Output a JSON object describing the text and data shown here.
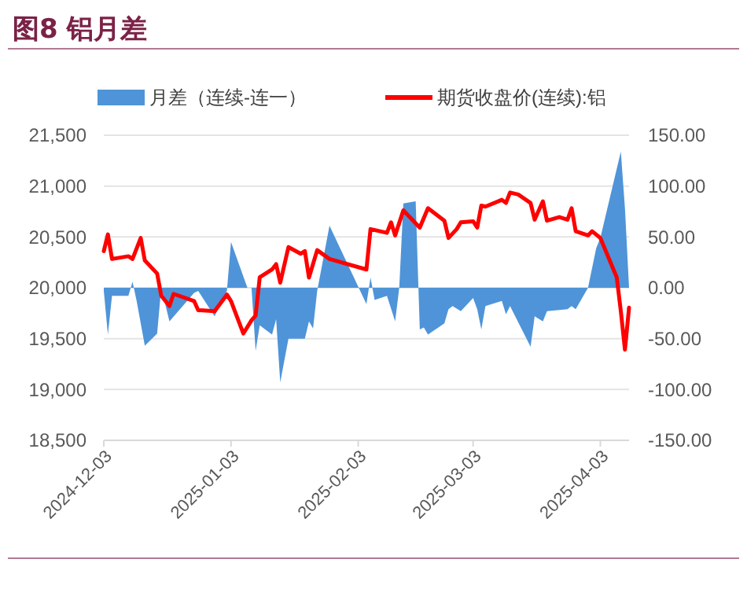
{
  "chart_data": {
    "type": "line",
    "title": "图8 铝月差",
    "legend": "top",
    "grid": "y",
    "xlim": [
      "2024-12-03",
      "2025-04-10"
    ],
    "xticks": [
      "2024-12-03",
      "2025-01-03",
      "2025-02-03",
      "2025-03-03",
      "2025-04-03"
    ],
    "ylim": [
      18500,
      21500
    ],
    "yticks": [
      {
        "value": 18500,
        "label": "18,500"
      },
      {
        "value": 19000,
        "label": "19,000"
      },
      {
        "value": 19500,
        "label": "19,500"
      },
      {
        "value": 20000,
        "label": "20,000"
      },
      {
        "value": 20500,
        "label": "20,500"
      },
      {
        "value": 21000,
        "label": "21,000"
      },
      {
        "value": 21500,
        "label": "21,500"
      }
    ],
    "y2lim": [
      -150,
      150
    ],
    "y2ticks": [
      {
        "value": -150,
        "label": "-150.00"
      },
      {
        "value": -100,
        "label": "-100.00"
      },
      {
        "value": -50,
        "label": "-50.00"
      },
      {
        "value": 0,
        "label": "0.00"
      },
      {
        "value": 50,
        "label": "50.00"
      },
      {
        "value": 100,
        "label": "100.00"
      },
      {
        "value": 150,
        "label": "150.00"
      }
    ],
    "series": [
      {
        "name": "月差（连续-连一）",
        "type": "area",
        "axis": "y2",
        "color": "#4f94d8",
        "x": [
          "2024-12-03",
          "2024-12-04",
          "2024-12-05",
          "2024-12-09",
          "2024-12-10",
          "2024-12-11",
          "2024-12-13",
          "2024-12-16",
          "2024-12-17",
          "2024-12-19",
          "2024-12-25",
          "2024-12-26",
          "2024-12-30",
          "2025-01-02",
          "2025-01-03",
          "2025-01-07",
          "2025-01-08",
          "2025-01-09",
          "2025-01-10",
          "2025-01-13",
          "2025-01-14",
          "2025-01-15",
          "2025-01-17",
          "2025-01-21",
          "2025-01-22",
          "2025-01-23",
          "2025-01-24",
          "2025-01-27",
          "2025-02-05",
          "2025-02-06",
          "2025-02-07",
          "2025-02-10",
          "2025-02-12",
          "2025-02-13",
          "2025-02-14",
          "2025-02-17",
          "2025-02-18",
          "2025-02-19",
          "2025-02-20",
          "2025-02-24",
          "2025-02-25",
          "2025-02-26",
          "2025-02-28",
          "2025-03-03",
          "2025-03-04",
          "2025-03-05",
          "2025-03-06",
          "2025-03-10",
          "2025-03-11",
          "2025-03-12",
          "2025-03-17",
          "2025-03-18",
          "2025-03-20",
          "2025-03-21",
          "2025-03-26",
          "2025-03-27",
          "2025-03-28",
          "2025-03-31",
          "2025-04-02",
          "2025-04-03",
          "2025-04-08",
          "2025-04-09",
          "2025-04-10"
        ],
        "values": [
          -3,
          -46,
          -8,
          -8,
          6,
          -13,
          -57,
          -45,
          0,
          -33,
          -5,
          -3,
          -28,
          -3,
          45,
          0,
          0,
          -62,
          -37,
          -46,
          -31,
          -93,
          -50,
          -50,
          -33,
          -40,
          -3,
          61,
          -16,
          10,
          -12,
          -8,
          -33,
          0,
          83,
          85,
          -41,
          -39,
          -46,
          -35,
          -21,
          -18,
          -23,
          -10,
          -21,
          -41,
          -18,
          -13,
          -26,
          -18,
          -58,
          -28,
          -33,
          -23,
          -21,
          -18,
          -21,
          0,
          39,
          49,
          134,
          78,
          0
        ]
      },
      {
        "name": "期货收盘价(连续):铝",
        "axis": "y",
        "color": "#ff0000",
        "x": [
          "2024-12-03",
          "2024-12-04",
          "2024-12-05",
          "2024-12-09",
          "2024-12-10",
          "2024-12-12",
          "2024-12-13",
          "2024-12-16",
          "2024-12-17",
          "2024-12-19",
          "2024-12-20",
          "2024-12-25",
          "2024-12-26",
          "2024-12-30",
          "2025-01-02",
          "2025-01-03",
          "2025-01-06",
          "2025-01-08",
          "2025-01-09",
          "2025-01-10",
          "2025-01-13",
          "2025-01-14",
          "2025-01-15",
          "2025-01-17",
          "2025-01-20",
          "2025-01-21",
          "2025-01-22",
          "2025-01-24",
          "2025-01-27",
          "2025-02-05",
          "2025-02-06",
          "2025-02-10",
          "2025-02-11",
          "2025-02-12",
          "2025-02-14",
          "2025-02-18",
          "2025-02-20",
          "2025-02-24",
          "2025-02-25",
          "2025-02-27",
          "2025-02-28",
          "2025-03-03",
          "2025-03-04",
          "2025-03-05",
          "2025-03-06",
          "2025-03-10",
          "2025-03-11",
          "2025-03-12",
          "2025-03-14",
          "2025-03-17",
          "2025-03-18",
          "2025-03-20",
          "2025-03-21",
          "2025-03-24",
          "2025-03-26",
          "2025-03-27",
          "2025-03-28",
          "2025-03-31",
          "2025-04-01",
          "2025-04-03",
          "2025-04-07",
          "2025-04-08",
          "2025-04-09",
          "2025-04-10"
        ],
        "values": [
          20360,
          20525,
          20283,
          20310,
          20283,
          20490,
          20268,
          20140,
          19923,
          19820,
          19940,
          19870,
          19780,
          19770,
          19933,
          19870,
          19550,
          19680,
          19727,
          20103,
          20180,
          20232,
          20050,
          20400,
          20335,
          20360,
          20100,
          20370,
          20283,
          20180,
          20577,
          20540,
          20644,
          20515,
          20762,
          20592,
          20783,
          20660,
          20490,
          20577,
          20644,
          20654,
          20592,
          20808,
          20798,
          20865,
          20834,
          20937,
          20917,
          20834,
          20670,
          20850,
          20660,
          20695,
          20670,
          20783,
          20556,
          20515,
          20556,
          20490,
          20103,
          19768,
          19392,
          19804
        ]
      }
    ]
  }
}
